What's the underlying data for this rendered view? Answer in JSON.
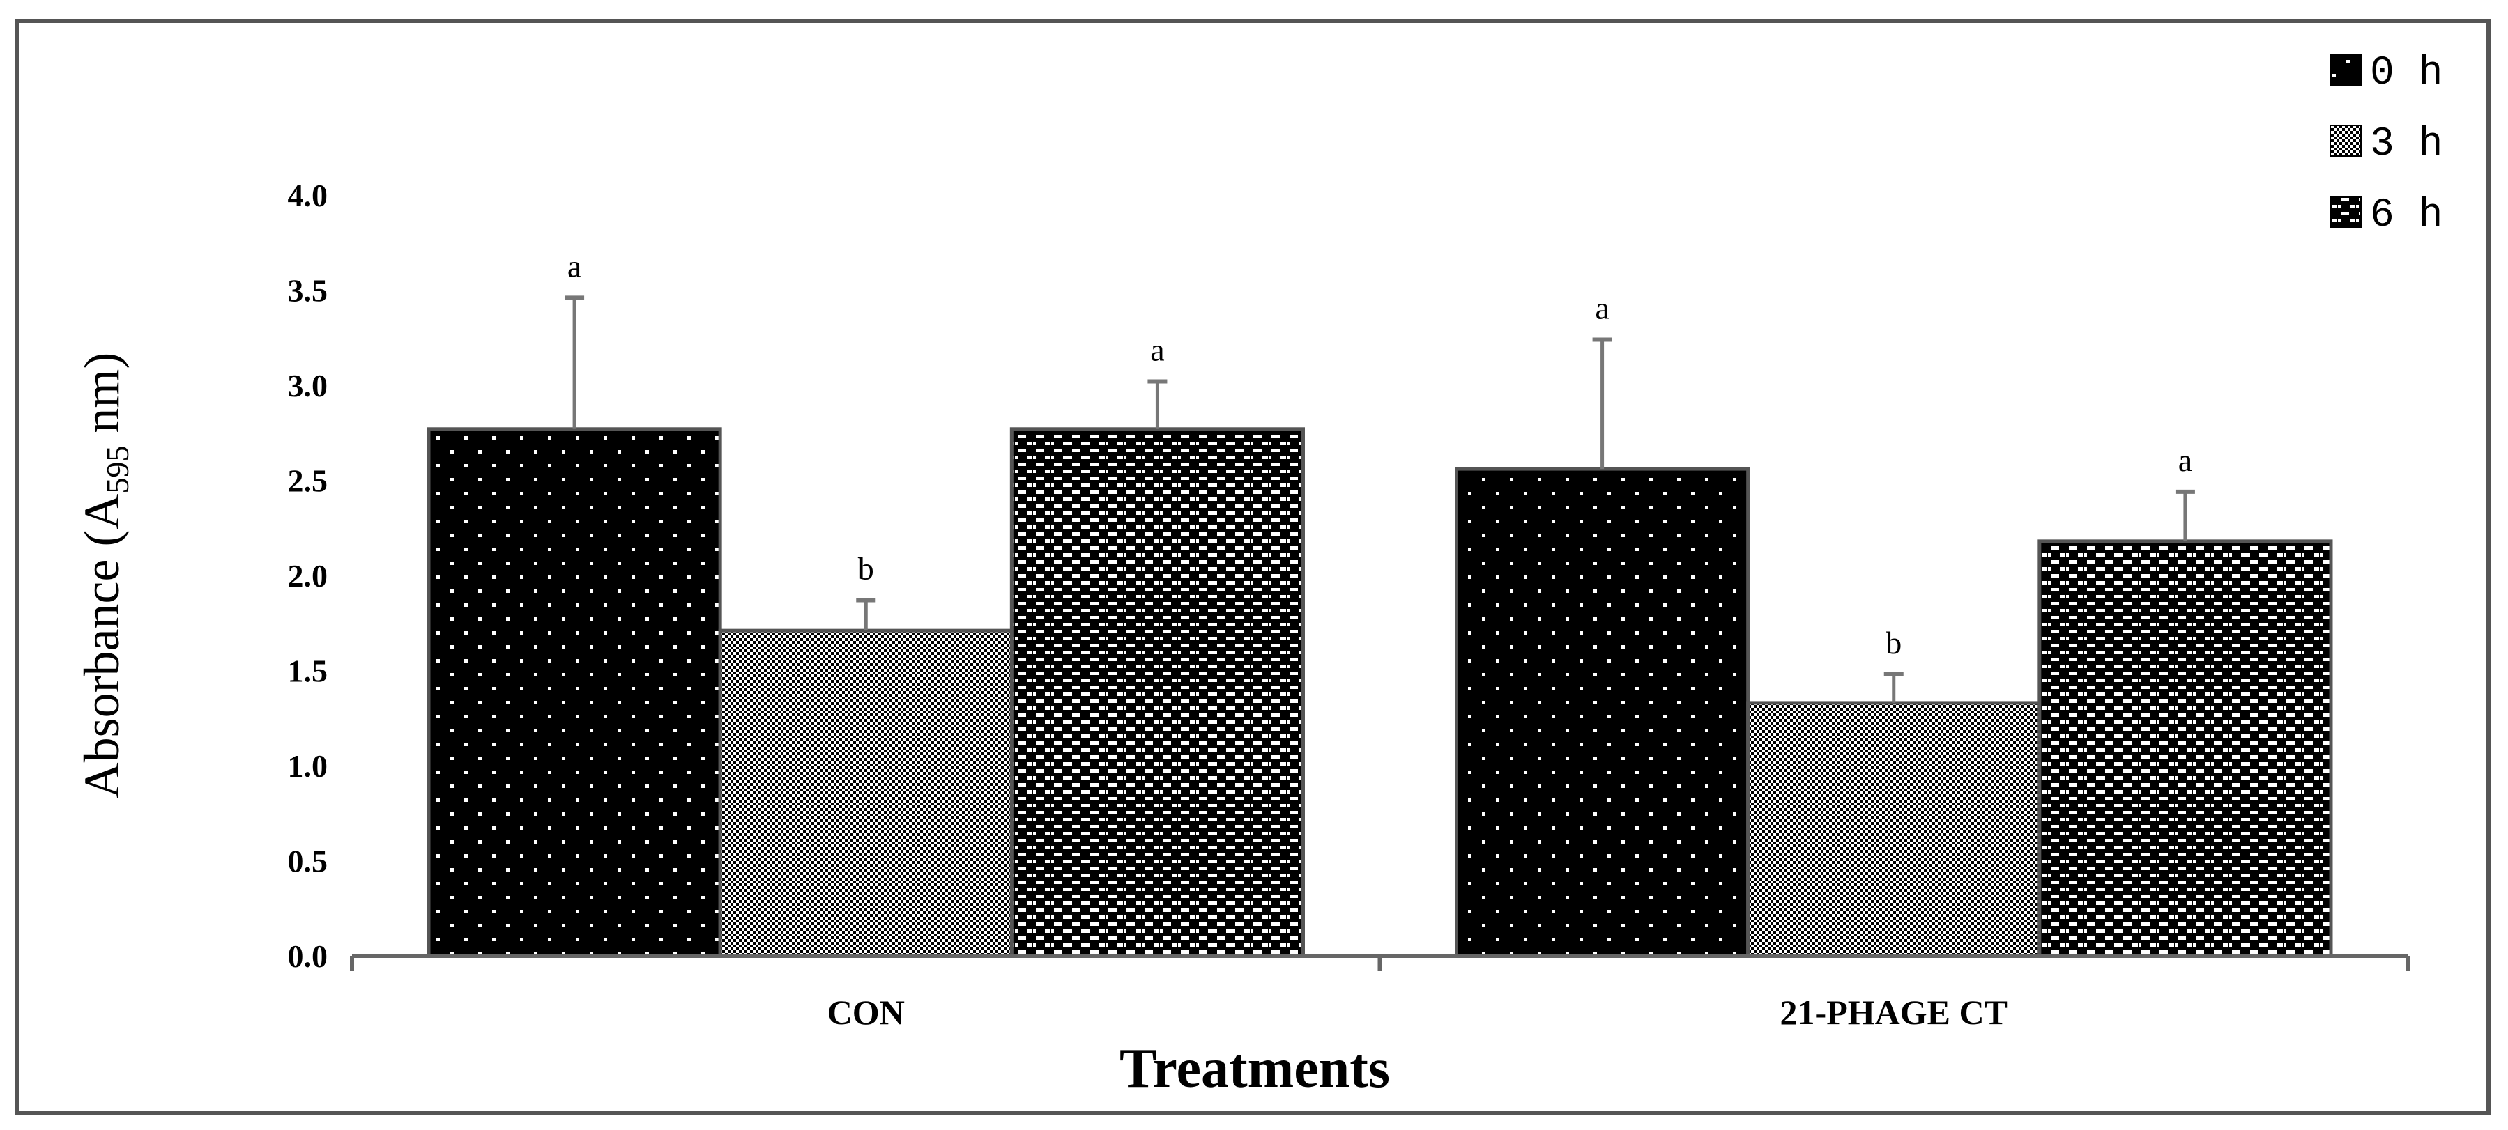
{
  "chart_data": {
    "type": "bar",
    "title": "",
    "xlabel": "Treatments",
    "ylabel": "Absorbance (A595 nm)",
    "ylabel_parts": {
      "main": "Absorbance (A",
      "sub": "595",
      "tail": " nm)"
    },
    "ylim": [
      0,
      4.0
    ],
    "yticks": [
      "0.0",
      "0.5",
      "1.0",
      "1.5",
      "2.0",
      "2.5",
      "3.0",
      "3.5",
      "4.0"
    ],
    "categories": [
      "CON",
      "21-PHAGE CT"
    ],
    "legend_position": "top-right",
    "series": [
      {
        "name": "0 h",
        "pattern": "dots",
        "values": [
          2.77,
          2.56
        ],
        "error_upper": [
          3.46,
          3.24
        ],
        "labels": [
          "a",
          "a"
        ]
      },
      {
        "name": "3 h",
        "pattern": "checker",
        "values": [
          1.71,
          1.33
        ],
        "error_upper": [
          1.87,
          1.48
        ],
        "labels": [
          "b",
          "b"
        ]
      },
      {
        "name": "6 h",
        "pattern": "dashes",
        "values": [
          2.77,
          2.18
        ],
        "error_upper": [
          3.02,
          2.44
        ],
        "labels": [
          "a",
          "a"
        ]
      }
    ]
  }
}
